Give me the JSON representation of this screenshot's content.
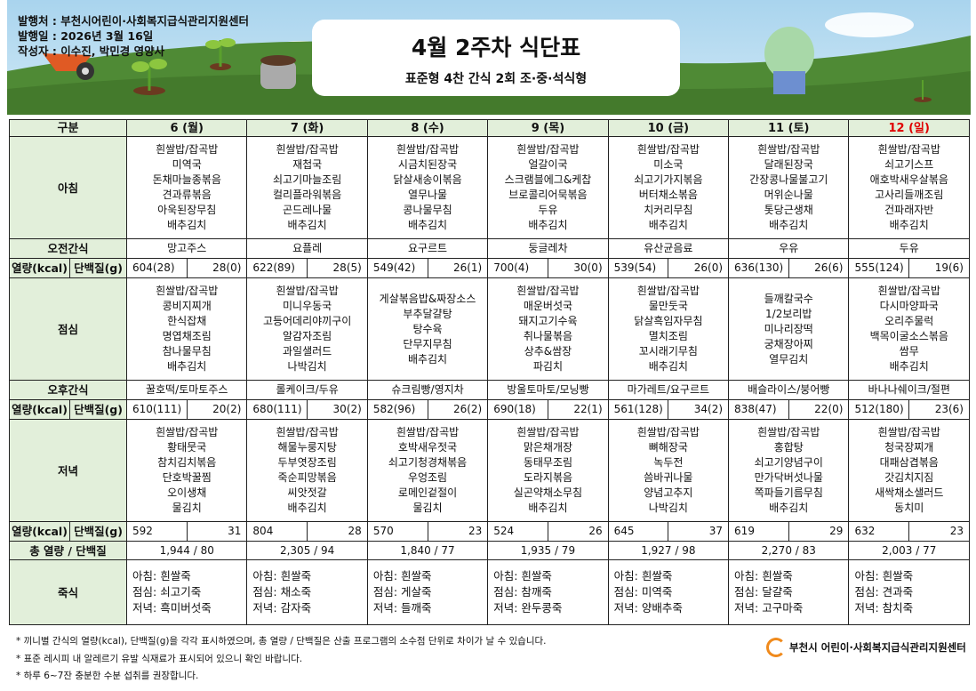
{
  "header": {
    "publisher": "발행처 : 부천시어린이·사회복지급식관리지원센터",
    "date": "발행일 : 2026년 3월 16일",
    "author": "작성자 : 이수진, 박민경 영양사",
    "title": "4월 2주차 식단표",
    "subtitle": "표준형 4찬 간식 2회 조·중·석식형"
  },
  "labels": {
    "category": "구분",
    "breakfast": "아침",
    "am_snack": "오전간식",
    "kcal": "열량(kcal)",
    "protein": "단백질(g)",
    "lunch": "점심",
    "pm_snack": "오후간식",
    "dinner": "저녁",
    "total": "총 열량 / 단백질",
    "porridge": "죽식"
  },
  "days": [
    {
      "day": "6 (월)",
      "breakfast": [
        "흰쌀밥/잡곡밥",
        "미역국",
        "돈채마늘종볶음",
        "견과류볶음",
        "아욱된장무침",
        "배추김치"
      ],
      "am_snack": "망고주스",
      "am_kcal": "604(28)",
      "am_protein": "28(0)",
      "lunch": [
        "흰쌀밥/잡곡밥",
        "콩비지찌개",
        "한식잡채",
        "명엽채조림",
        "참나물무침",
        "배추김치"
      ],
      "pm_snack": "꿀호떡/토마토주스",
      "pm_kcal": "610(111)",
      "pm_protein": "20(2)",
      "dinner": [
        "흰쌀밥/잡곡밥",
        "황태뭇국",
        "참치김치볶음",
        "단호박꿀찜",
        "오이생채",
        "물김치"
      ],
      "dn_kcal": "592",
      "dn_protein": "31",
      "total": "1,944  /  80",
      "porridge": [
        "아침: 흰쌀죽",
        "점심: 쇠고기죽",
        "저녁: 흑미버섯죽"
      ]
    },
    {
      "day": "7 (화)",
      "breakfast": [
        "흰쌀밥/잡곡밥",
        "재첩국",
        "쇠고기마늘조림",
        "컬리플라워볶음",
        "곤드레나물",
        "배추김치"
      ],
      "am_snack": "요플레",
      "am_kcal": "622(89)",
      "am_protein": "28(5)",
      "lunch": [
        "흰쌀밥/잡곡밥",
        "미니우동국",
        "고등어데리야끼구이",
        "알감자조림",
        "과일샐러드",
        "나박김치"
      ],
      "pm_snack": "롤케이크/두유",
      "pm_kcal": "680(111)",
      "pm_protein": "30(2)",
      "dinner": [
        "흰쌀밥/잡곡밥",
        "해물누룽지탕",
        "두부엿장조림",
        "죽순피망볶음",
        "씨앗젓갈",
        "배추김치"
      ],
      "dn_kcal": "804",
      "dn_protein": "28",
      "total": "2,305  /  94",
      "porridge": [
        "아침: 흰쌀죽",
        "점심: 채소죽",
        "저녁: 감자죽"
      ]
    },
    {
      "day": "8 (수)",
      "breakfast": [
        "흰쌀밥/잡곡밥",
        "시금치된장국",
        "닭살새송이볶음",
        "열무나물",
        "콩나물무침",
        "배추김치"
      ],
      "am_snack": "요구르트",
      "am_kcal": "549(42)",
      "am_protein": "26(1)",
      "lunch": [
        "게살볶음밥&짜장소스",
        "부추달걀탕",
        "탕수육",
        "단무지무침",
        "배추김치"
      ],
      "pm_snack": "슈크림빵/영지차",
      "pm_kcal": "582(96)",
      "pm_protein": "26(2)",
      "dinner": [
        "흰쌀밥/잡곡밥",
        "호박새우젓국",
        "쇠고기청경채볶음",
        "우엉조림",
        "로메인겉절이",
        "물김치"
      ],
      "dn_kcal": "570",
      "dn_protein": "23",
      "total": "1,840  /  77",
      "porridge": [
        "아침: 흰쌀죽",
        "점심: 게살죽",
        "저녁: 들깨죽"
      ]
    },
    {
      "day": "9 (목)",
      "breakfast": [
        "흰쌀밥/잡곡밥",
        "얼갈이국",
        "스크램블에그&케찹",
        "브로콜리어묵볶음",
        "두유",
        "배추김치"
      ],
      "am_snack": "둥글레차",
      "am_kcal": "700(4)",
      "am_protein": "30(0)",
      "lunch": [
        "흰쌀밥/잡곡밥",
        "매운버섯국",
        "돼지고기수육",
        "취나물볶음",
        "상추&쌈장",
        "파김치"
      ],
      "pm_snack": "방울토마토/모닝빵",
      "pm_kcal": "690(18)",
      "pm_protein": "22(1)",
      "dinner": [
        "흰쌀밥/잡곡밥",
        "맑은채개장",
        "동태무조림",
        "도라지볶음",
        "실곤약채소무침",
        "배추김치"
      ],
      "dn_kcal": "524",
      "dn_protein": "26",
      "total": "1,935  /  79",
      "porridge": [
        "아침: 흰쌀죽",
        "점심: 참깨죽",
        "저녁: 완두콩죽"
      ]
    },
    {
      "day": "10 (금)",
      "breakfast": [
        "흰쌀밥/잡곡밥",
        "미소국",
        "쇠고기가지볶음",
        "버터채소볶음",
        "치커리무침",
        "배추김치"
      ],
      "am_snack": "유산균음료",
      "am_kcal": "539(54)",
      "am_protein": "26(0)",
      "lunch": [
        "흰쌀밥/잡곡밥",
        "물만둣국",
        "닭살흑임자무침",
        "멸치조림",
        "꼬시래기무침",
        "배추김치"
      ],
      "pm_snack": "마가레트/요구르트",
      "pm_kcal": "561(128)",
      "pm_protein": "34(2)",
      "dinner": [
        "흰쌀밥/잡곡밥",
        "뼈해장국",
        "녹두전",
        "씀바귀나물",
        "양념고추지",
        "나박김치"
      ],
      "dn_kcal": "645",
      "dn_protein": "37",
      "total": "1,927  /  98",
      "porridge": [
        "아침: 흰쌀죽",
        "점심: 미역죽",
        "저녁: 양배추죽"
      ]
    },
    {
      "day": "11 (토)",
      "breakfast": [
        "흰쌀밥/잡곡밥",
        "달래된장국",
        "간장콩나물불고기",
        "머위순나물",
        "톳당근생채",
        "배추김치"
      ],
      "am_snack": "우유",
      "am_kcal": "636(130)",
      "am_protein": "26(6)",
      "lunch": [
        "들깨칼국수",
        "1/2보리밥",
        "미나리장떡",
        "궁채장아찌",
        "열무김치"
      ],
      "pm_snack": "배슬라이스/붕어빵",
      "pm_kcal": "838(47)",
      "pm_protein": "22(0)",
      "dinner": [
        "흰쌀밥/잡곡밥",
        "홍합탕",
        "쇠고기양념구이",
        "만가닥버섯나물",
        "쪽파들기름무침",
        "배추김치"
      ],
      "dn_kcal": "619",
      "dn_protein": "29",
      "total": "2,270  /  83",
      "porridge": [
        "아침: 흰쌀죽",
        "점심: 달걀죽",
        "저녁: 고구마죽"
      ]
    },
    {
      "day": "12 (일)",
      "sunday": true,
      "breakfast": [
        "흰쌀밥/잡곡밥",
        "쇠고기스프",
        "애호박새우살볶음",
        "고사리들깨조림",
        "건파래자반",
        "배추김치"
      ],
      "am_snack": "두유",
      "am_kcal": "555(124)",
      "am_protein": "19(6)",
      "lunch": [
        "흰쌀밥/잡곡밥",
        "다시마양파국",
        "오리주물럭",
        "백목이굴소스볶음",
        "쌈무",
        "배추김치"
      ],
      "pm_snack": "바나나쉐이크/절편",
      "pm_kcal": "512(180)",
      "pm_protein": "23(6)",
      "dinner": [
        "흰쌀밥/잡곡밥",
        "청국장찌개",
        "대패삼겹볶음",
        "갓김치지짐",
        "새싹채소샐러드",
        "동치미"
      ],
      "dn_kcal": "632",
      "dn_protein": "23",
      "total": "2,003  /  77",
      "porridge": [
        "아침: 흰쌀죽",
        "점심: 견과죽",
        "저녁: 참치죽"
      ]
    }
  ],
  "notes": [
    "* 끼니별 간식의 열량(kcal), 단백질(g)을 각각 표시하였으며, 총 열량 / 단백질은 산출 프로그램의 소수점 단위로 차이가 날 수 있습니다.",
    "* 표준 레시피 내 알레르기 유발 식재료가 표시되어 있으니 확인 바랍니다.",
    "* 하루 6~7잔 충분한 수분 섭취를 권장합니다."
  ],
  "footer_logo": "부천시 어린이·사회복지급식관리지원센터",
  "colors": {
    "header_bg": "#e2efda",
    "sunday": "#e00000",
    "logo": "#f08a1c"
  }
}
